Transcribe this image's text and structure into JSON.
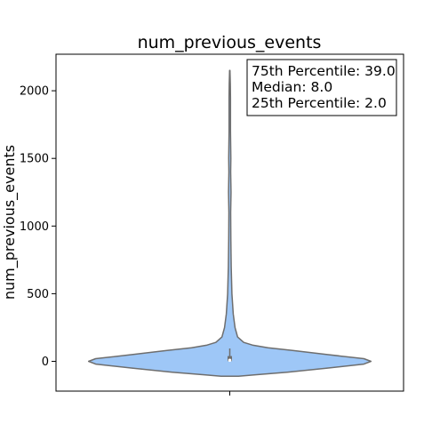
{
  "chart_data": {
    "type": "violin",
    "title": "num_previous_events",
    "ylabel": "num_previous_events",
    "xlabel": "",
    "ylim": [
      -220,
      2270
    ],
    "yticks": [
      0,
      500,
      1000,
      1500,
      2000
    ],
    "ytick_labels": [
      "0",
      "500",
      "1000",
      "1500",
      "2000"
    ],
    "grid": false,
    "violin_color": "#9ec7f7",
    "edge_color": "#6e6e6e",
    "violin_profile": [
      {
        "value": -110,
        "width": 0.05
      },
      {
        "value": -100,
        "width": 0.14
      },
      {
        "value": -80,
        "width": 0.33
      },
      {
        "value": -50,
        "width": 0.56
      },
      {
        "value": -20,
        "width": 0.77
      },
      {
        "value": 0,
        "width": 0.81
      },
      {
        "value": 20,
        "width": 0.77
      },
      {
        "value": 50,
        "width": 0.56
      },
      {
        "value": 80,
        "width": 0.36
      },
      {
        "value": 100,
        "width": 0.22
      },
      {
        "value": 120,
        "width": 0.13
      },
      {
        "value": 140,
        "width": 0.08
      },
      {
        "value": 180,
        "width": 0.045
      },
      {
        "value": 250,
        "width": 0.03
      },
      {
        "value": 350,
        "width": 0.02
      },
      {
        "value": 500,
        "width": 0.012
      },
      {
        "value": 700,
        "width": 0.008
      },
      {
        "value": 900,
        "width": 0.006
      },
      {
        "value": 1100,
        "width": 0.005
      },
      {
        "value": 1250,
        "width": 0.007
      },
      {
        "value": 1400,
        "width": 0.005
      },
      {
        "value": 1500,
        "width": 0.006
      },
      {
        "value": 1700,
        "width": 0.004
      },
      {
        "value": 1950,
        "width": 0.004
      },
      {
        "value": 2050,
        "width": 0.003
      },
      {
        "value": 2150,
        "width": 0.001
      }
    ],
    "box": {
      "q1": 2.0,
      "median": 8.0,
      "q3": 39.0,
      "whisker_low": 0,
      "whisker_high": 95
    },
    "annotation": [
      "75th Percentile: 39.0",
      "Median: 8.0",
      "25th Percentile: 2.0"
    ]
  }
}
